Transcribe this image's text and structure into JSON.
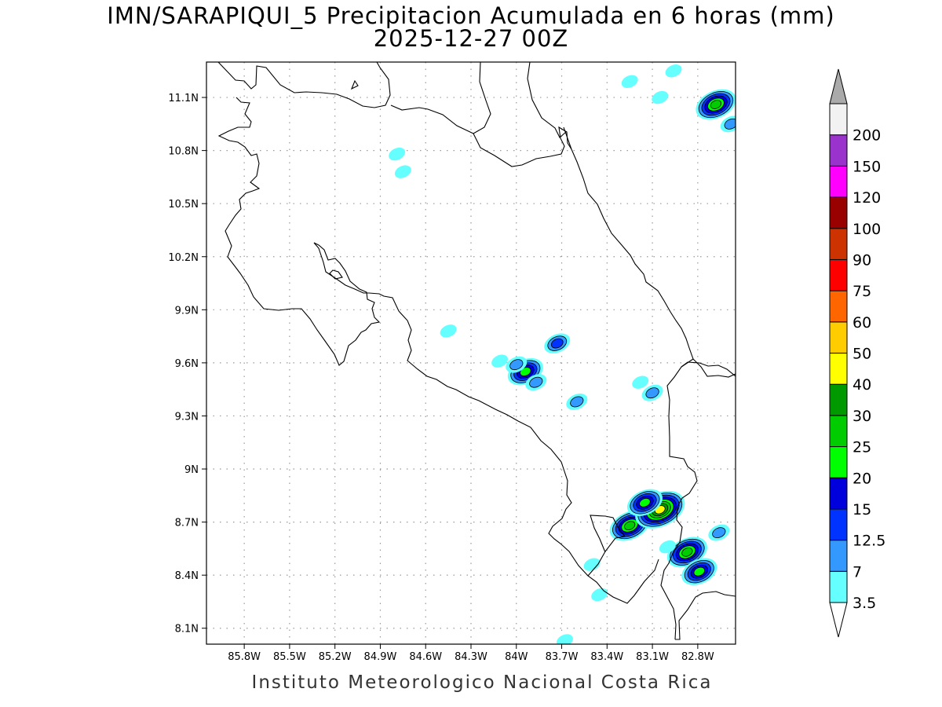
{
  "title": "IMN/SARAPIQUI_5 Precipitacion Acumulada en 6 horas (mm)",
  "subtitle": "2025-12-27 00Z",
  "footer": "Instituto Meteorologico Nacional Costa Rica",
  "map": {
    "lon_range": [
      -86.05,
      -82.55
    ],
    "lat_range": [
      8.01,
      11.3
    ],
    "lon_ticks": [
      {
        "value": -85.8,
        "label": "85.8W"
      },
      {
        "value": -85.5,
        "label": "85.5W"
      },
      {
        "value": -85.2,
        "label": "85.2W"
      },
      {
        "value": -84.9,
        "label": "84.9W"
      },
      {
        "value": -84.6,
        "label": "84.6W"
      },
      {
        "value": -84.3,
        "label": "84.3W"
      },
      {
        "value": -84.0,
        "label": "84W"
      },
      {
        "value": -83.7,
        "label": "83.7W"
      },
      {
        "value": -83.4,
        "label": "83.4W"
      },
      {
        "value": -83.1,
        "label": "83.1W"
      },
      {
        "value": -82.8,
        "label": "82.8W"
      }
    ],
    "lat_ticks": [
      {
        "value": 11.1,
        "label": "11.1N"
      },
      {
        "value": 10.8,
        "label": "10.8N"
      },
      {
        "value": 10.5,
        "label": "10.5N"
      },
      {
        "value": 10.2,
        "label": "10.2N"
      },
      {
        "value": 9.9,
        "label": "9.9N"
      },
      {
        "value": 9.6,
        "label": "9.6N"
      },
      {
        "value": 9.3,
        "label": "9.3N"
      },
      {
        "value": 9.0,
        "label": "9N"
      },
      {
        "value": 8.7,
        "label": "8.7N"
      },
      {
        "value": 8.4,
        "label": "8.4N"
      },
      {
        "value": 8.1,
        "label": "8.1N"
      }
    ],
    "grid": true,
    "coastline_color": "#000000"
  },
  "colorbar": {
    "bins": [
      {
        "label": "3.5",
        "color": "#ffffff"
      },
      {
        "label": "7",
        "color": "#66ffff"
      },
      {
        "label": "12.5",
        "color": "#3399ff"
      },
      {
        "label": "15",
        "color": "#0033ff"
      },
      {
        "label": "20",
        "color": "#0000dd"
      },
      {
        "label": "25",
        "color": "#00ff00"
      },
      {
        "label": "30",
        "color": "#00cc00"
      },
      {
        "label": "40",
        "color": "#009900"
      },
      {
        "label": "50",
        "color": "#ffff00"
      },
      {
        "label": "60",
        "color": "#ffcc00"
      },
      {
        "label": "75",
        "color": "#ff6600"
      },
      {
        "label": "90",
        "color": "#ff0000"
      },
      {
        "label": "100",
        "color": "#cc3300"
      },
      {
        "label": "120",
        "color": "#990000"
      },
      {
        "label": "150",
        "color": "#ff00ff"
      },
      {
        "label": "200",
        "color": "#9933cc"
      }
    ],
    "top_color": "#f2f2f2",
    "over_color": "#aaaaaa",
    "under_color": "#ffffff"
  },
  "precip_cells": [
    {
      "lon": -82.68,
      "lat": 11.06,
      "peak": 25
    },
    {
      "lon": -83.25,
      "lat": 8.68,
      "peak": 25
    },
    {
      "lon": -83.05,
      "lat": 8.77,
      "peak": 40
    },
    {
      "lon": -83.15,
      "lat": 8.81,
      "peak": 20
    },
    {
      "lon": -82.87,
      "lat": 8.53,
      "peak": 25
    },
    {
      "lon": -82.79,
      "lat": 8.42,
      "peak": 20
    },
    {
      "lon": -83.94,
      "lat": 9.55,
      "peak": 20
    },
    {
      "lon": -83.73,
      "lat": 9.71,
      "peak": 12.5
    },
    {
      "lon": -83.1,
      "lat": 9.43,
      "peak": 7
    },
    {
      "lon": -83.6,
      "lat": 9.38,
      "peak": 7
    },
    {
      "lon": -84.0,
      "lat": 9.59,
      "peak": 7
    },
    {
      "lon": -83.87,
      "lat": 9.49,
      "peak": 7
    },
    {
      "lon": -84.75,
      "lat": 10.68,
      "peak": 3.5
    },
    {
      "lon": -84.79,
      "lat": 10.78,
      "peak": 3.5
    },
    {
      "lon": -84.11,
      "lat": 9.61,
      "peak": 3.5
    },
    {
      "lon": -84.45,
      "lat": 9.78,
      "peak": 3.5
    },
    {
      "lon": -82.66,
      "lat": 8.64,
      "peak": 7
    },
    {
      "lon": -83.5,
      "lat": 8.46,
      "peak": 3.5
    },
    {
      "lon": -83.0,
      "lat": 8.56,
      "peak": 3.5
    },
    {
      "lon": -82.58,
      "lat": 10.95,
      "peak": 7
    },
    {
      "lon": -82.96,
      "lat": 11.25,
      "peak": 3.5
    },
    {
      "lon": -83.25,
      "lat": 11.19,
      "peak": 3.5
    },
    {
      "lon": -83.68,
      "lat": 8.03,
      "peak": 3.5
    },
    {
      "lon": -83.05,
      "lat": 11.1,
      "peak": 3.5
    },
    {
      "lon": -83.18,
      "lat": 9.49,
      "peak": 3.5
    },
    {
      "lon": -83.45,
      "lat": 8.29,
      "peak": 3.5
    }
  ]
}
